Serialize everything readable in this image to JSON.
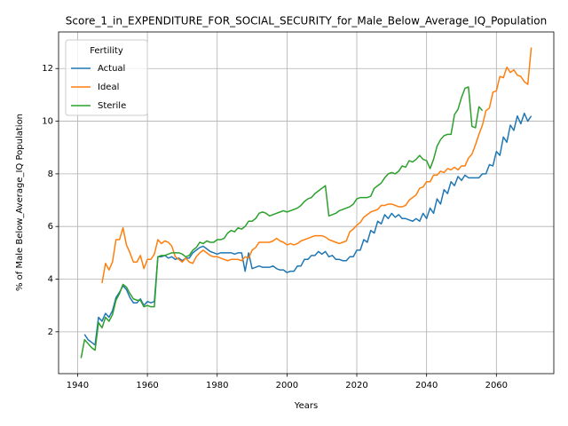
{
  "chart_data": {
    "type": "line",
    "title": "Score_1_in_EXPENDITURE_FOR_SOCIAL_SECURITY_for_Male_Below_Average_IQ_Population",
    "xlabel": "Years",
    "ylabel": "% of Male Below_Average_IQ Population",
    "legend_title": "Fertility",
    "legend": "upper left",
    "grid": true,
    "xlim": [
      1934.55,
      2076.45
    ],
    "xticks": [
      1940,
      1960,
      1980,
      2000,
      2020,
      2040,
      2060
    ],
    "ylim": [
      0.41,
      13.39
    ],
    "yticks": [
      2,
      4,
      6,
      8,
      10,
      12
    ],
    "x": [
      1941,
      1942,
      1943,
      1944,
      1945,
      1946,
      1947,
      1948,
      1949,
      1950,
      1951,
      1952,
      1953,
      1954,
      1955,
      1956,
      1957,
      1958,
      1959,
      1960,
      1961,
      1962,
      1963,
      1964,
      1965,
      1966,
      1967,
      1968,
      1969,
      1970,
      1971,
      1972,
      1973,
      1974,
      1975,
      1976,
      1977,
      1978,
      1979,
      1980,
      1981,
      1982,
      1983,
      1984,
      1985,
      1986,
      1987,
      1988,
      1989,
      1990,
      1991,
      1992,
      1993,
      1994,
      1995,
      1996,
      1997,
      1998,
      1999,
      2000,
      2001,
      2002,
      2003,
      2004,
      2005,
      2006,
      2007,
      2008,
      2009,
      2010,
      2011,
      2012,
      2013,
      2014,
      2015,
      2016,
      2017,
      2018,
      2019,
      2020,
      2021,
      2022,
      2023,
      2024,
      2025,
      2026,
      2027,
      2028,
      2029,
      2030,
      2031,
      2032,
      2033,
      2034,
      2035,
      2036,
      2037,
      2038,
      2039,
      2040,
      2041,
      2042,
      2043,
      2044,
      2045,
      2046,
      2047,
      2048,
      2049,
      2050,
      2051,
      2052,
      2053,
      2054,
      2055,
      2056,
      2057,
      2058,
      2059,
      2060,
      2061,
      2062,
      2063,
      2064,
      2065,
      2066,
      2067,
      2068,
      2069,
      2070
    ],
    "series": [
      {
        "name": "Actual",
        "color": "#1f77b4",
        "values": [
          null,
          1.9,
          1.7,
          1.6,
          1.5,
          2.55,
          2.4,
          2.7,
          2.55,
          2.8,
          3.3,
          3.5,
          3.75,
          3.6,
          3.3,
          3.1,
          3.1,
          3.25,
          3.0,
          3.15,
          3.1,
          3.15,
          4.85,
          4.85,
          4.9,
          4.8,
          4.85,
          4.75,
          4.8,
          4.7,
          4.8,
          4.8,
          5.0,
          5.1,
          5.2,
          5.25,
          5.15,
          5.05,
          5.0,
          4.95,
          5.0,
          5.0,
          5.0,
          5.0,
          4.95,
          5.0,
          5.0,
          4.3,
          5.0,
          4.4,
          4.45,
          4.5,
          4.45,
          4.45,
          4.45,
          4.5,
          4.4,
          4.35,
          4.35,
          4.25,
          4.3,
          4.3,
          4.5,
          4.5,
          4.75,
          4.75,
          4.9,
          4.9,
          5.05,
          4.95,
          5.05,
          4.85,
          4.9,
          4.75,
          4.75,
          4.7,
          4.7,
          4.85,
          4.85,
          5.1,
          5.1,
          5.5,
          5.4,
          5.85,
          5.75,
          6.2,
          6.1,
          6.45,
          6.3,
          6.5,
          6.35,
          6.45,
          6.3,
          6.3,
          6.25,
          6.2,
          6.3,
          6.2,
          6.5,
          6.3,
          6.7,
          6.5,
          7.05,
          6.85,
          7.4,
          7.25,
          7.7,
          7.55,
          7.9,
          7.75,
          7.95,
          7.85,
          7.85,
          7.85,
          7.85,
          8.0,
          8.0,
          8.35,
          8.3,
          8.85,
          8.7,
          9.4,
          9.2,
          9.85,
          9.65,
          10.2,
          9.9,
          10.3,
          10.0,
          10.2
        ]
      },
      {
        "name": "Ideal",
        "color": "#ff7f0e",
        "values": [
          null,
          null,
          null,
          null,
          null,
          null,
          3.85,
          4.6,
          4.35,
          4.65,
          5.5,
          5.5,
          5.95,
          5.3,
          5.0,
          4.65,
          4.65,
          4.9,
          4.4,
          4.75,
          4.75,
          4.95,
          5.5,
          5.35,
          5.45,
          5.4,
          5.25,
          4.85,
          4.75,
          4.65,
          4.8,
          4.65,
          4.6,
          4.85,
          5.0,
          5.1,
          5.0,
          4.9,
          4.85,
          4.85,
          4.8,
          4.75,
          4.7,
          4.75,
          4.75,
          4.75,
          4.7,
          4.85,
          4.8,
          5.1,
          5.2,
          5.4,
          5.4,
          5.4,
          5.4,
          5.45,
          5.55,
          5.45,
          5.4,
          5.3,
          5.35,
          5.3,
          5.35,
          5.45,
          5.5,
          5.55,
          5.6,
          5.65,
          5.65,
          5.65,
          5.6,
          5.5,
          5.45,
          5.4,
          5.35,
          5.4,
          5.45,
          5.8,
          5.9,
          6.05,
          6.15,
          6.35,
          6.45,
          6.55,
          6.6,
          6.65,
          6.8,
          6.8,
          6.85,
          6.85,
          6.8,
          6.75,
          6.75,
          6.8,
          7.0,
          7.1,
          7.2,
          7.45,
          7.5,
          7.7,
          7.7,
          7.95,
          7.95,
          8.1,
          8.05,
          8.2,
          8.15,
          8.25,
          8.15,
          8.3,
          8.3,
          8.6,
          8.75,
          9.1,
          9.5,
          9.85,
          10.4,
          10.5,
          11.1,
          11.15,
          11.7,
          11.65,
          12.05,
          11.85,
          11.95,
          11.75,
          11.7,
          11.5,
          11.4,
          12.8
        ]
      },
      {
        "name": "Sterile",
        "color": "#2ca02c",
        "values": [
          1.0,
          1.7,
          1.55,
          1.4,
          1.3,
          2.35,
          2.15,
          2.55,
          2.4,
          2.65,
          3.2,
          3.45,
          3.8,
          3.7,
          3.45,
          3.25,
          3.2,
          3.2,
          2.95,
          3.0,
          2.95,
          2.95,
          4.85,
          4.9,
          4.9,
          4.95,
          5.0,
          5.0,
          5.0,
          4.95,
          4.85,
          4.9,
          5.1,
          5.2,
          5.4,
          5.35,
          5.45,
          5.4,
          5.4,
          5.5,
          5.5,
          5.55,
          5.75,
          5.85,
          5.8,
          5.95,
          5.9,
          6.0,
          6.2,
          6.2,
          6.3,
          6.5,
          6.55,
          6.5,
          6.4,
          6.45,
          6.5,
          6.55,
          6.6,
          6.55,
          6.6,
          6.65,
          6.7,
          6.8,
          6.95,
          7.05,
          7.1,
          7.25,
          7.35,
          7.45,
          7.55,
          6.4,
          6.45,
          6.5,
          6.6,
          6.65,
          6.7,
          6.75,
          6.85,
          7.05,
          7.1,
          7.1,
          7.1,
          7.15,
          7.45,
          7.55,
          7.65,
          7.85,
          8.0,
          8.05,
          8.0,
          8.1,
          8.3,
          8.25,
          8.5,
          8.45,
          8.55,
          8.7,
          8.55,
          8.5,
          8.2,
          8.55,
          9.05,
          9.3,
          9.45,
          9.5,
          9.5,
          10.25,
          10.45,
          10.9,
          11.25,
          11.3,
          9.8,
          9.75,
          10.55,
          10.4,
          null,
          null,
          null,
          null,
          null,
          null,
          null,
          null,
          null,
          null,
          null,
          null,
          null,
          null
        ]
      }
    ]
  }
}
